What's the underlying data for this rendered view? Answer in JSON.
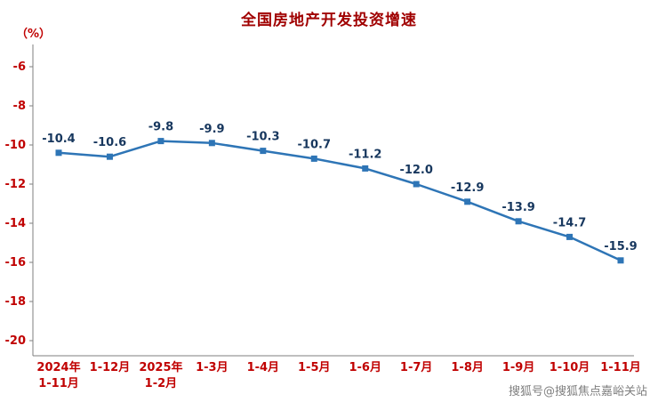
{
  "watermark": {
    "text": "搜狐号@搜狐焦点嘉峪关站"
  },
  "colors": {
    "title": "#a00000",
    "axis_text": "#c00000",
    "axis_line": "#7f7f7f",
    "line": "#2e75b6",
    "data_label": "#17375e",
    "watermark": "#7f7f7f"
  },
  "chart_data": {
    "type": "line",
    "title": "全国房地产开发投资增速",
    "ylabel": "（%）",
    "categories": [
      "2024年\n1-11月",
      "1-12月",
      "2025年\n1-2月",
      "1-3月",
      "1-4月",
      "1-5月",
      "1-6月",
      "1-7月",
      "1-8月",
      "1-9月",
      "1-10月",
      "1-11月"
    ],
    "values": [
      -10.4,
      -10.6,
      -9.8,
      -9.9,
      -10.3,
      -10.7,
      -11.2,
      -12.0,
      -12.9,
      -13.9,
      -14.7,
      -15.9
    ],
    "yticks": [
      -6,
      -8,
      -10,
      -12,
      -14,
      -16,
      -18,
      -20
    ],
    "ylim": [
      -20,
      -6
    ],
    "grid": false,
    "legend": "none",
    "marker": "square"
  }
}
